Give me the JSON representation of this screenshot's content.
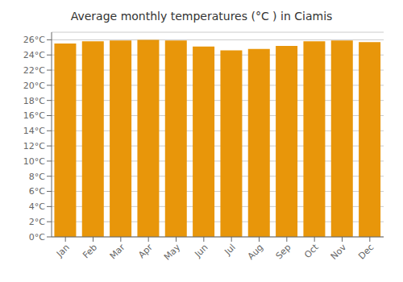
{
  "chart_data": {
    "type": "bar",
    "title": "Average monthly temperatures (°C ) in Ciamis",
    "categories": [
      "Jan",
      "Feb",
      "Mar",
      "Apr",
      "May",
      "Jun",
      "Jul",
      "Aug",
      "Sep",
      "Oct",
      "Nov",
      "Dec"
    ],
    "values": [
      25.5,
      25.8,
      25.9,
      26.0,
      25.9,
      25.1,
      24.6,
      24.8,
      25.2,
      25.8,
      25.9,
      25.7
    ],
    "color": "#E8960A",
    "ylim": [
      0,
      27
    ],
    "yticks": [
      {
        "value": 0,
        "label": "0°C"
      },
      {
        "value": 2,
        "label": "2°C"
      },
      {
        "value": 4,
        "label": "4°C"
      },
      {
        "value": 6,
        "label": "6°C"
      },
      {
        "value": 8,
        "label": "8°C"
      },
      {
        "value": 10,
        "label": "10°C"
      },
      {
        "value": 12,
        "label": "12°C"
      },
      {
        "value": 14,
        "label": "14°C"
      },
      {
        "value": 16,
        "label": "16°C"
      },
      {
        "value": 18,
        "label": "18°C"
      },
      {
        "value": 20,
        "label": "20°C"
      },
      {
        "value": 22,
        "label": "22°C"
      },
      {
        "value": 24,
        "label": "24°C"
      },
      {
        "value": 26,
        "label": "26°C"
      }
    ],
    "grid": true
  }
}
